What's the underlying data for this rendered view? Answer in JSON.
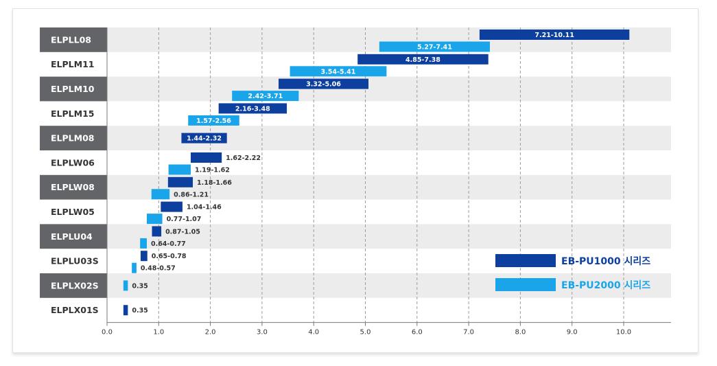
{
  "chart_data": {
    "type": "bar",
    "subtype": "horizontal-range",
    "title": "",
    "xlabel": "",
    "ylabel": "",
    "xlim": [
      0,
      10.9
    ],
    "x_ticks": [
      "0.0",
      "1.0",
      "2.0",
      "3.0",
      "4.0",
      "5.0",
      "6.0",
      "7.0",
      "8.0",
      "9.0",
      "10.0"
    ],
    "grid": "vertical-dashed",
    "legend_position": "bottom-right",
    "series": [
      {
        "name": "EB-PU1000 시리즈",
        "color": "#0d3f9e"
      },
      {
        "name": "EB-PU2000 시리즈",
        "color": "#1aa5ea"
      }
    ],
    "rows": [
      {
        "label": "ELPLL08",
        "shaded": true,
        "bars": [
          {
            "series": 0,
            "start": 7.21,
            "end": 10.11,
            "text": "7.21-10.11",
            "label_pos": "inside"
          },
          {
            "series": 1,
            "start": 5.27,
            "end": 7.41,
            "text": "5.27-7.41",
            "label_pos": "inside"
          }
        ]
      },
      {
        "label": "ELPLM11",
        "shaded": false,
        "bars": [
          {
            "series": 0,
            "start": 4.85,
            "end": 7.38,
            "text": "4.85-7.38",
            "label_pos": "inside"
          },
          {
            "series": 1,
            "start": 3.54,
            "end": 5.41,
            "text": "3.54-5.41",
            "label_pos": "inside"
          }
        ]
      },
      {
        "label": "ELPLM10",
        "shaded": true,
        "bars": [
          {
            "series": 0,
            "start": 3.32,
            "end": 5.06,
            "text": "3.32-5.06",
            "label_pos": "inside"
          },
          {
            "series": 1,
            "start": 2.42,
            "end": 3.71,
            "text": "2.42-3.71",
            "label_pos": "inside"
          }
        ]
      },
      {
        "label": "ELPLM15",
        "shaded": false,
        "bars": [
          {
            "series": 0,
            "start": 2.16,
            "end": 3.48,
            "text": "2.16-3.48",
            "label_pos": "inside"
          },
          {
            "series": 1,
            "start": 1.57,
            "end": 2.56,
            "text": "1.57-2.56",
            "label_pos": "inside"
          }
        ]
      },
      {
        "label": "ELPLM08",
        "shaded": true,
        "bars": [
          {
            "series": 0,
            "start": 1.44,
            "end": 2.32,
            "text": "1.44-2.32",
            "label_pos": "inside"
          }
        ]
      },
      {
        "label": "ELPLW06",
        "shaded": false,
        "bars": [
          {
            "series": 0,
            "start": 1.62,
            "end": 2.22,
            "text": "1.62-2.22",
            "label_pos": "outside"
          },
          {
            "series": 1,
            "start": 1.19,
            "end": 1.62,
            "text": "1.19-1.62",
            "label_pos": "outside"
          }
        ]
      },
      {
        "label": "ELPLW08",
        "shaded": true,
        "bars": [
          {
            "series": 0,
            "start": 1.18,
            "end": 1.66,
            "text": "1.18-1.66",
            "label_pos": "outside"
          },
          {
            "series": 1,
            "start": 0.86,
            "end": 1.21,
            "text": "0.86-1.21",
            "label_pos": "outside"
          }
        ]
      },
      {
        "label": "ELPLW05",
        "shaded": false,
        "bars": [
          {
            "series": 0,
            "start": 1.04,
            "end": 1.46,
            "text": "1.04-1.46",
            "label_pos": "outside"
          },
          {
            "series": 1,
            "start": 0.77,
            "end": 1.07,
            "text": "0.77-1.07",
            "label_pos": "outside"
          }
        ]
      },
      {
        "label": "ELPLU04",
        "shaded": true,
        "bars": [
          {
            "series": 0,
            "start": 0.87,
            "end": 1.05,
            "text": "0.87-1.05",
            "label_pos": "outside"
          },
          {
            "series": 1,
            "start": 0.64,
            "end": 0.77,
            "text": "0.64-0.77",
            "label_pos": "outside"
          }
        ]
      },
      {
        "label": "ELPLU03S",
        "shaded": false,
        "bars": [
          {
            "series": 0,
            "start": 0.65,
            "end": 0.78,
            "text": "0.65-0.78",
            "label_pos": "outside"
          },
          {
            "series": 1,
            "start": 0.48,
            "end": 0.57,
            "text": "0.48-0.57",
            "label_pos": "outside"
          }
        ]
      },
      {
        "label": "ELPLX02S",
        "shaded": true,
        "bars": [
          {
            "series": 1,
            "start": 0.35,
            "end": 0.35,
            "text": "0.35",
            "label_pos": "outside"
          }
        ]
      },
      {
        "label": "ELPLX01S",
        "shaded": false,
        "bars": [
          {
            "series": 0,
            "start": 0.35,
            "end": 0.35,
            "text": "0.35",
            "label_pos": "outside"
          }
        ]
      }
    ],
    "colors": {
      "label_bg": "#626467",
      "label_fg_light": "#ffffff",
      "label_fg_dark": "#333333",
      "band": "#ececec",
      "grid": "#9b9b9b",
      "axis": "#777777"
    }
  }
}
